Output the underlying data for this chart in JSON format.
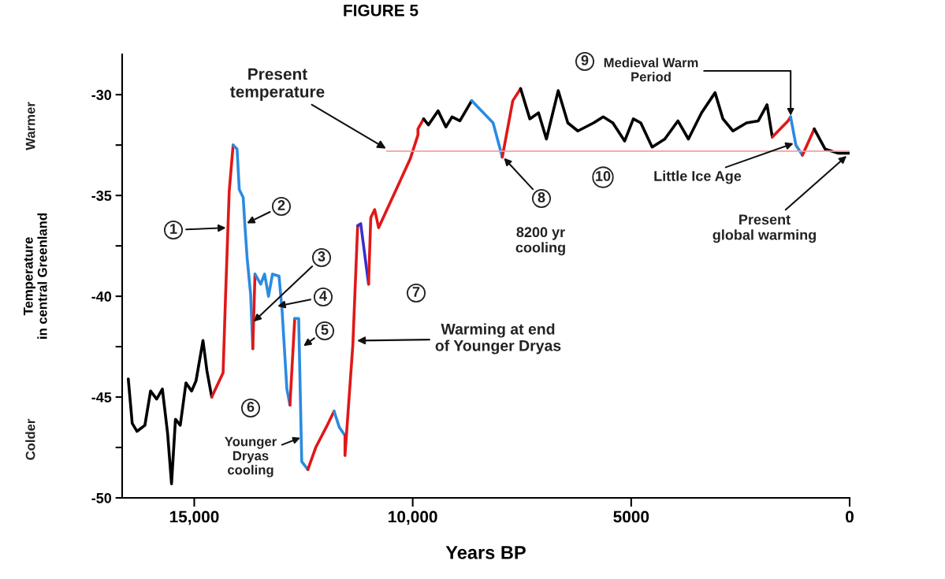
{
  "chart_data": {
    "type": "line",
    "title": "FIGURE 5",
    "xlabel": "Years BP",
    "ylabel": "Temperature\nin central Greenland",
    "xlim": [
      16650,
      0
    ],
    "ylim": [
      -50,
      -28
    ],
    "xticks": [
      {
        "value": 15000,
        "label": "15,000"
      },
      {
        "value": 10000,
        "label": "10,000"
      },
      5000,
      0
    ],
    "yticks": [
      -30,
      {
        "value": -32.5,
        "label": null
      },
      -35,
      {
        "value": -37.5,
        "label": null
      },
      -40,
      {
        "value": -42.5,
        "label": null
      },
      -45,
      {
        "value": -47.5,
        "label": null
      },
      -50
    ],
    "grid": false,
    "legend": false,
    "line_style": "solid",
    "series": [
      {
        "color": "#000000",
        "x": [
          16510,
          16420,
          16310,
          16130,
          16000,
          15860,
          15730,
          15610,
          15520,
          15430,
          15320,
          15190,
          15060,
          14960,
          14800,
          14710,
          14600
        ],
        "values": [
          -44.1,
          -46.3,
          -46.7,
          -46.4,
          -44.7,
          -45.1,
          -44.6,
          -46.8,
          -49.3,
          -46.1,
          -46.4,
          -44.3,
          -44.7,
          -44.2,
          -42.2,
          -43.7,
          -45.0
        ]
      },
      {
        "color": "#e01818",
        "x": [
          14600,
          14340,
          14290,
          14200,
          14110
        ],
        "values": [
          -45.0,
          -43.8,
          -40.4,
          -34.8,
          -32.5
        ]
      },
      {
        "color": "#2b8be0",
        "x": [
          14110,
          14020,
          13970,
          13880,
          13840,
          13790,
          13710,
          13660
        ],
        "values": [
          -32.5,
          -32.7,
          -34.7,
          -35.1,
          -36.5,
          -38.1,
          -39.9,
          -42.6
        ]
      },
      {
        "color": "#e01818",
        "x": [
          13660,
          13610
        ],
        "values": [
          -42.6,
          -38.9
        ]
      },
      {
        "color": "#2b8be0",
        "x": [
          13610,
          13480,
          13390,
          13300,
          13210,
          13060,
          12990,
          12880,
          12810
        ],
        "values": [
          -38.9,
          -39.4,
          -38.9,
          -40.0,
          -38.9,
          -39.0,
          -40.7,
          -44.6,
          -45.4
        ]
      },
      {
        "color": "#e01818",
        "x": [
          12810,
          12700
        ],
        "values": [
          -45.4,
          -41.1
        ]
      },
      {
        "color": "#2b8be0",
        "x": [
          12700,
          12610,
          12540,
          12400
        ],
        "values": [
          -41.1,
          -41.1,
          -48.2,
          -48.6
        ]
      },
      {
        "color": "#e01818",
        "x": [
          12400,
          12220,
          11980,
          11800
        ],
        "values": [
          -48.6,
          -47.5,
          -46.5,
          -45.7
        ]
      },
      {
        "color": "#2b8be0",
        "x": [
          11800,
          11680,
          11550
        ],
        "values": [
          -45.7,
          -46.5,
          -46.9
        ]
      },
      {
        "color": "#e01818",
        "x": [
          11550,
          11550,
          11370,
          11260
        ],
        "values": [
          -46.9,
          -47.9,
          -42.4,
          -36.5
        ]
      },
      {
        "color": "#3a2ec8",
        "x": [
          11260,
          11190,
          11010
        ],
        "values": [
          -36.5,
          -36.4,
          -39.4
        ]
      },
      {
        "color": "#e01818",
        "x": [
          11010,
          10960,
          10870,
          10780,
          10060,
          9880,
          9880,
          9750
        ],
        "values": [
          -39.4,
          -36.1,
          -35.7,
          -36.6,
          -33.2,
          -32.0,
          -31.7,
          -31.2
        ]
      },
      {
        "color": "#000000",
        "x": [
          9750,
          9640,
          9420,
          9240,
          9100,
          8920,
          8650
        ],
        "values": [
          -31.2,
          -31.5,
          -30.8,
          -31.6,
          -31.1,
          -31.3,
          -30.3
        ]
      },
      {
        "color": "#2b8be0",
        "x": [
          8650,
          8160,
          7950
        ],
        "values": [
          -30.3,
          -31.4,
          -33.1
        ]
      },
      {
        "color": "#e01818",
        "x": [
          7950,
          7710,
          7530
        ],
        "values": [
          -33.1,
          -30.3,
          -29.7
        ]
      },
      {
        "color": "#000000",
        "x": [
          7530,
          7320,
          7120,
          6940,
          6670,
          6450,
          6220,
          5860,
          5640,
          5420,
          5150,
          4950,
          4780,
          4520,
          4230,
          3930,
          3690,
          3390,
          3080,
          2900,
          2670,
          2360,
          2090,
          1890,
          1770
        ],
        "values": [
          -29.7,
          -31.2,
          -30.9,
          -32.2,
          -29.8,
          -31.4,
          -31.8,
          -31.4,
          -31.1,
          -31.4,
          -32.3,
          -31.2,
          -31.4,
          -32.6,
          -32.2,
          -31.3,
          -32.2,
          -30.9,
          -29.9,
          -31.2,
          -31.8,
          -31.4,
          -31.3,
          -30.5,
          -32.1
        ]
      },
      {
        "color": "#e01818",
        "x": [
          1770,
          1410,
          1350
        ],
        "values": [
          -32.1,
          -31.3,
          -31.1
        ]
      },
      {
        "color": "#2b8be0",
        "x": [
          1350,
          1230,
          1080
        ],
        "values": [
          -31.1,
          -32.5,
          -33.0
        ]
      },
      {
        "color": "#e01818",
        "x": [
          1080,
          810
        ],
        "values": [
          -33.0,
          -31.7
        ]
      },
      {
        "color": "#000000",
        "x": [
          810,
          560,
          270,
          0
        ],
        "values": [
          -31.7,
          -32.7,
          -32.9,
          -32.9
        ]
      },
      {
        "color": "#f2a0a0",
        "x": [
          10600,
          0
        ],
        "values": [
          -32.8,
          -32.8
        ]
      }
    ],
    "annotations": [
      {
        "text": "1",
        "x": 14250,
        "y": -36.6
      },
      {
        "text": "2",
        "x": 13820,
        "y": -36.4
      },
      {
        "text": "3",
        "x": 13660,
        "y": -41.3
      },
      {
        "text": "4",
        "x": 13120,
        "y": -40.5
      },
      {
        "text": "5",
        "x": 12520,
        "y": -42.5
      },
      "6",
      {
        "text": "Younger\nDryas\ncooling",
        "x": 12550,
        "y": -47.0
      },
      "7",
      {
        "text": "Warming at end\nof Younger Dryas",
        "x": 11300,
        "y": -42.2
      },
      {
        "text": "Present\ntemperature",
        "x": 10590,
        "y": -32.7
      },
      {
        "text": "8",
        "x": 7930,
        "y": -33.1
      },
      "8200 yr\ncooling",
      "9",
      {
        "text": "Medieval Warm\nPeriod",
        "x": 1350,
        "y": -31.1
      },
      "10",
      {
        "text": "Little Ice Age",
        "x": 1260,
        "y": -32.4
      },
      {
        "text": "Present\nglobal warming",
        "x": 50,
        "y": -33.0
      },
      "Warmer",
      "Colder"
    ]
  }
}
